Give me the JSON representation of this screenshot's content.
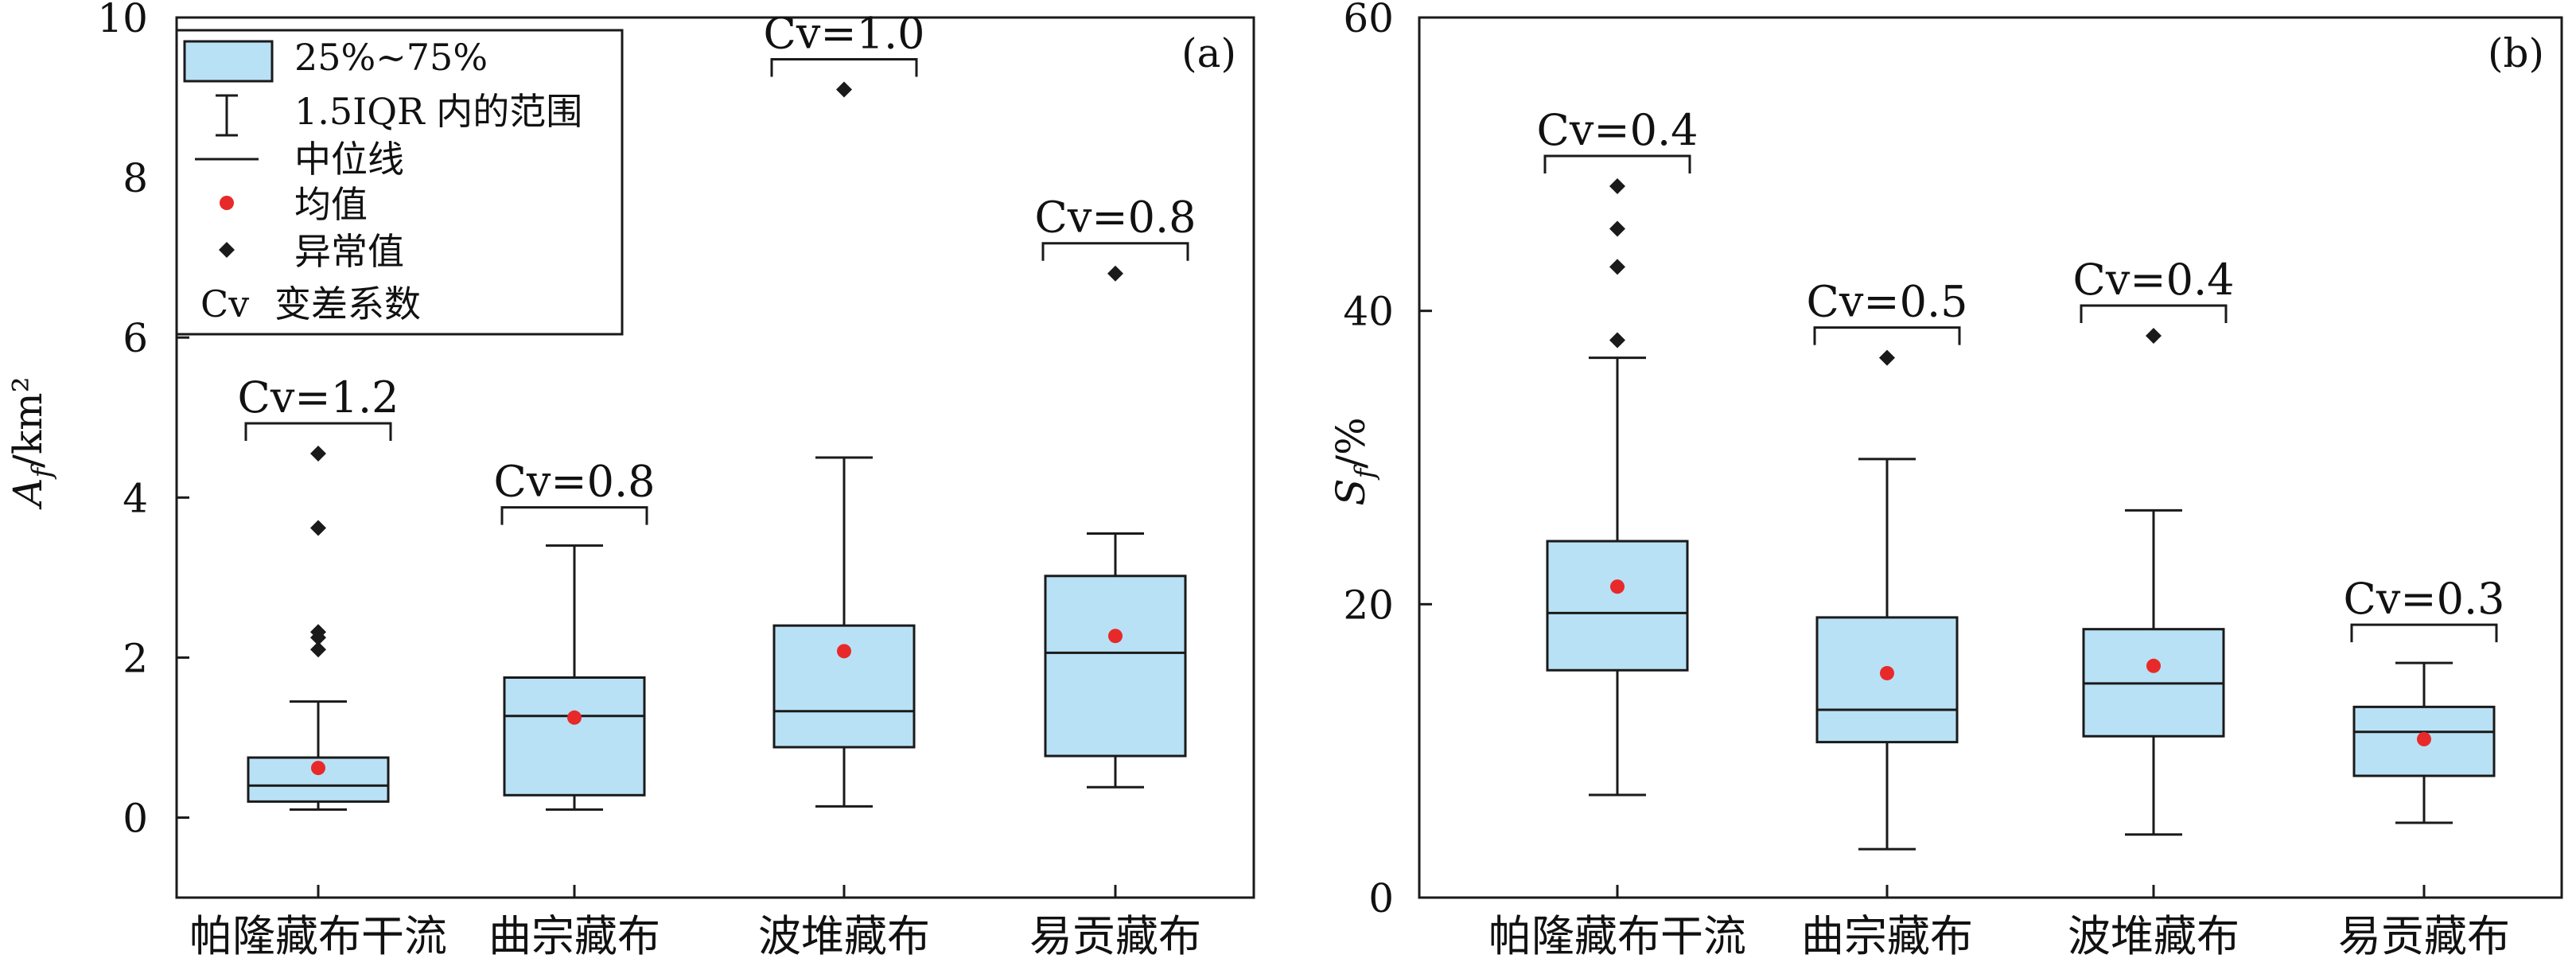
{
  "colors": {
    "box_fill": "#b9e1f5",
    "box_stroke": "#1a1a1a",
    "mean_marker": "#e8292a",
    "outlier_marker": "#1a1a1a",
    "axis": "#1a1a1a",
    "background": "#ffffff"
  },
  "chart_data": [
    {
      "type": "box",
      "panel_label": "(a)",
      "ylabel_main": "A",
      "ylabel_sub": "f",
      "ylabel_rest": "/km²",
      "ylim": [
        -1,
        10
      ],
      "yticks": [
        0,
        2,
        4,
        6,
        8,
        10
      ],
      "grid": false,
      "legend_position": "top-left",
      "categories": [
        "帕隆藏布干流",
        "曲宗藏布",
        "波堆藏布",
        "易贡藏布"
      ],
      "boxes": [
        {
          "whisker_low": 0.1,
          "q1": 0.2,
          "median": 0.4,
          "q3": 0.75,
          "whisker_high": 1.45,
          "mean": 0.62,
          "outliers": [
            2.1,
            2.25,
            2.32,
            3.62,
            4.55
          ],
          "cv_label": "Cv=1.2"
        },
        {
          "whisker_low": 0.1,
          "q1": 0.28,
          "median": 1.27,
          "q3": 1.75,
          "whisker_high": 3.4,
          "mean": 1.25,
          "outliers": [],
          "cv_label": "Cv=0.8"
        },
        {
          "whisker_low": 0.14,
          "q1": 0.88,
          "median": 1.33,
          "q3": 2.4,
          "whisker_high": 4.5,
          "mean": 2.08,
          "outliers": [
            9.1
          ],
          "cv_label": "Cv=1.0"
        },
        {
          "whisker_low": 0.38,
          "q1": 0.77,
          "median": 2.06,
          "q3": 3.02,
          "whisker_high": 3.55,
          "mean": 2.27,
          "outliers": [
            6.8
          ],
          "cv_label": "Cv=0.8"
        }
      ],
      "legend": [
        {
          "symbol": "box",
          "label": "25%~75%"
        },
        {
          "symbol": "whisker",
          "label": "1.5IQR 内的范围"
        },
        {
          "symbol": "line",
          "label": "中位线"
        },
        {
          "symbol": "mean",
          "label": "均值"
        },
        {
          "symbol": "outlier",
          "label": "异常值"
        },
        {
          "symbol": "text",
          "prefix": "Cv",
          "label": "变差系数"
        }
      ]
    },
    {
      "type": "box",
      "panel_label": "(b)",
      "ylabel_main": "S",
      "ylabel_sub": "f",
      "ylabel_rest": "/%",
      "ylim": [
        0,
        60
      ],
      "yticks": [
        0,
        20,
        40,
        60
      ],
      "grid": false,
      "categories": [
        "帕隆藏布干流",
        "曲宗藏布",
        "波堆藏布",
        "易贡藏布"
      ],
      "boxes": [
        {
          "whisker_low": 7,
          "q1": 15.5,
          "median": 19.4,
          "q3": 24.3,
          "whisker_high": 36.8,
          "mean": 21.2,
          "outliers": [
            38,
            43,
            45.6,
            48.5
          ],
          "cv_label": "Cv=0.4"
        },
        {
          "whisker_low": 3.3,
          "q1": 10.6,
          "median": 12.8,
          "q3": 19.1,
          "whisker_high": 29.9,
          "mean": 15.3,
          "outliers": [
            36.8
          ],
          "cv_label": "Cv=0.5"
        },
        {
          "whisker_low": 4.3,
          "q1": 11.0,
          "median": 14.6,
          "q3": 18.3,
          "whisker_high": 26.4,
          "mean": 15.8,
          "outliers": [
            38.3
          ],
          "cv_label": "Cv=0.4"
        },
        {
          "whisker_low": 5.1,
          "q1": 8.3,
          "median": 11.3,
          "q3": 13.0,
          "whisker_high": 16.0,
          "mean": 10.8,
          "outliers": [],
          "cv_label": "Cv=0.3"
        }
      ]
    }
  ]
}
